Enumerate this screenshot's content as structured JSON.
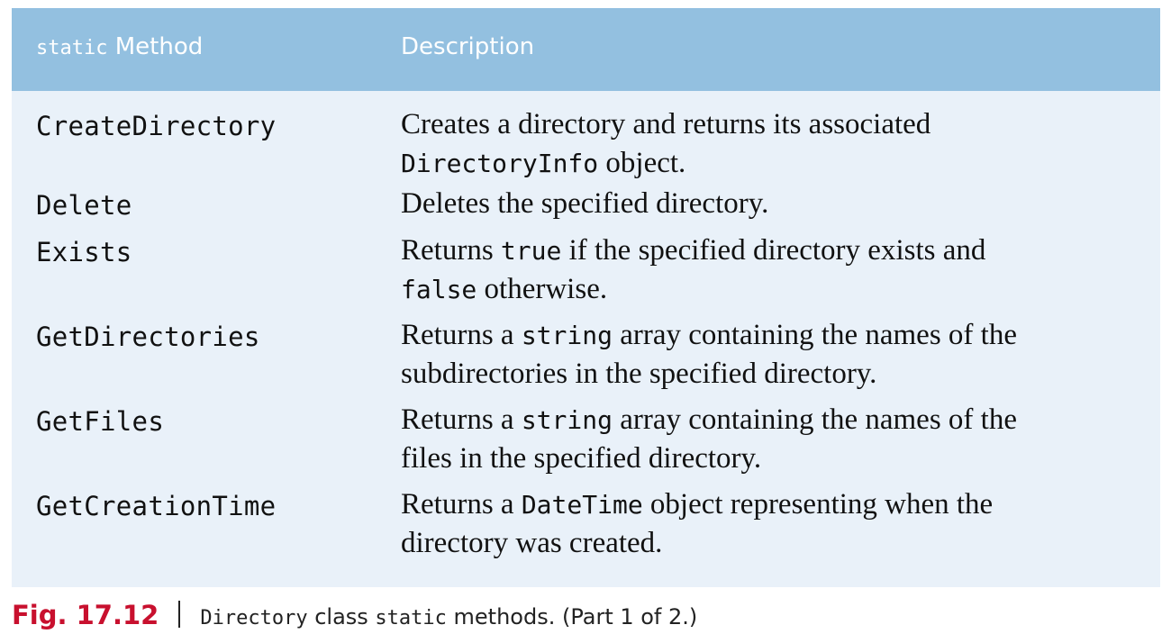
{
  "table": {
    "header": {
      "method_code": "static",
      "method_label": "Method",
      "description_label": "Description"
    },
    "rows": [
      {
        "method": "CreateDirectory",
        "desc_line1": "Creates a directory and returns its associated",
        "desc_line2_code": "DirectoryInfo",
        "desc_line2_text": " object."
      },
      {
        "method": "Delete",
        "desc_line1": "Deletes the specified directory."
      },
      {
        "method": "Exists",
        "desc_line1_pre": "Returns ",
        "desc_line1_code": "true",
        "desc_line1_post": " if the specified directory exists and",
        "desc_line2_code": "false",
        "desc_line2_text": " otherwise."
      },
      {
        "method": "GetDirectories",
        "desc_line1_pre": "Returns a ",
        "desc_line1_code": "string",
        "desc_line1_post": " array containing the names of the",
        "desc_line2_text": "subdirectories in the specified directory."
      },
      {
        "method": "GetFiles",
        "desc_line1_pre": "Returns a ",
        "desc_line1_code": "string",
        "desc_line1_post": " array containing the names of the",
        "desc_line2_text": "files in the specified directory."
      },
      {
        "method": "GetCreationTime",
        "desc_line1_pre": "Returns a ",
        "desc_line1_code": "DateTime",
        "desc_line1_post": " object representing when the",
        "desc_line2_text": "directory was created."
      }
    ]
  },
  "caption": {
    "fig_label": "Fig. 17.12",
    "class_code": "Directory",
    "text_mid": " class ",
    "static_code": "static",
    "text_end": " methods. (Part 1 of 2.)"
  }
}
